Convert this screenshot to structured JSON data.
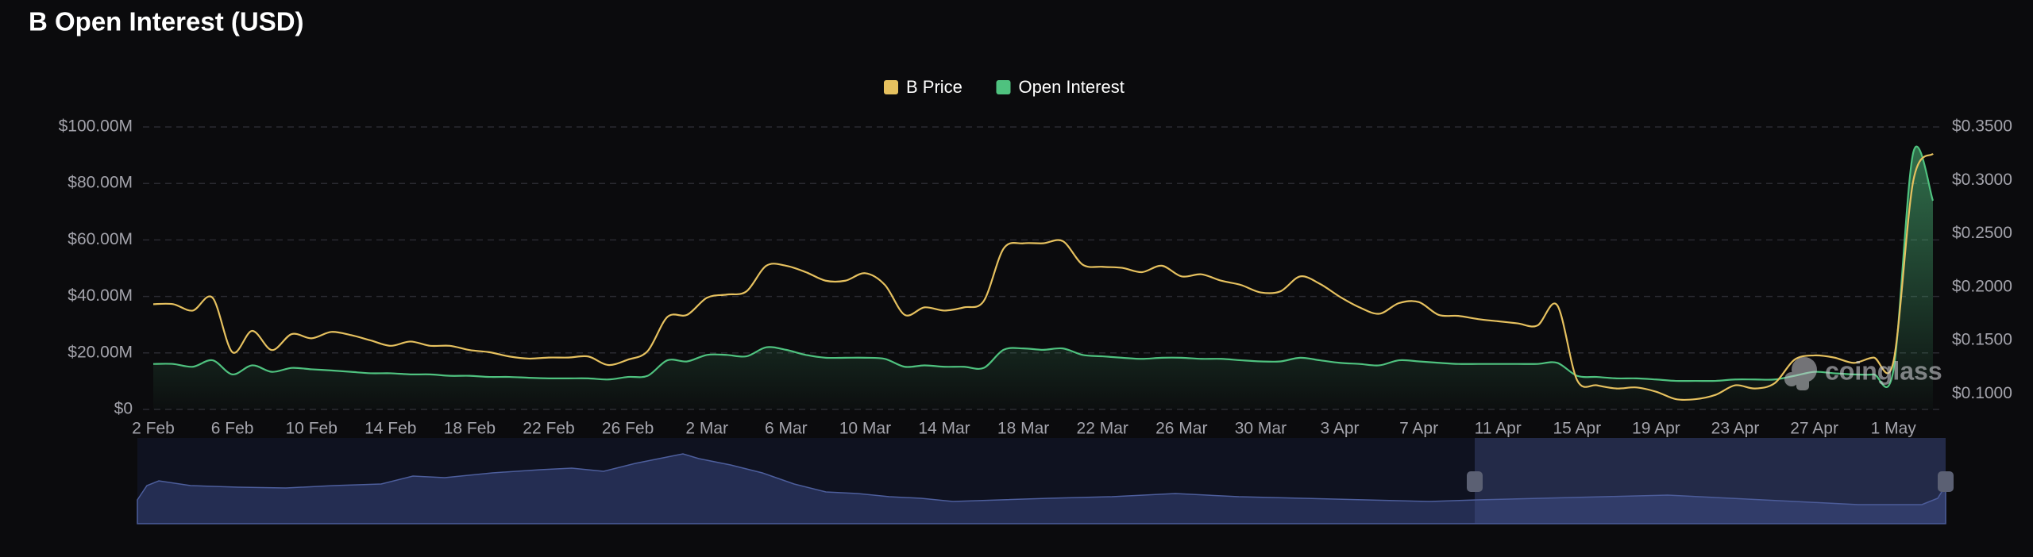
{
  "chart_data": {
    "type": "line",
    "title": "B Open Interest (USD)",
    "watermark": "coinglass",
    "legend_position": "top",
    "grid": true,
    "categories": [
      "2 Feb",
      null,
      null,
      null,
      "6 Feb",
      null,
      null,
      null,
      "10 Feb",
      null,
      null,
      null,
      "14 Feb",
      null,
      null,
      null,
      "18 Feb",
      null,
      null,
      null,
      "22 Feb",
      null,
      null,
      null,
      "26 Feb",
      null,
      null,
      null,
      "2 Mar",
      null,
      null,
      null,
      "6 Mar",
      null,
      null,
      null,
      "10 Mar",
      null,
      null,
      null,
      "14 Mar",
      null,
      null,
      null,
      "18 Mar",
      null,
      null,
      null,
      "22 Mar",
      null,
      null,
      null,
      "26 Mar",
      null,
      null,
      null,
      "30 Mar",
      null,
      null,
      null,
      "3 Apr",
      null,
      null,
      null,
      "7 Apr",
      null,
      null,
      null,
      "11 Apr",
      null,
      null,
      null,
      "15 Apr",
      null,
      null,
      null,
      "19 Apr",
      null,
      null,
      null,
      "23 Apr",
      null,
      null,
      null,
      "27 Apr",
      null,
      null,
      null,
      "1 May",
      null,
      null
    ],
    "series": [
      {
        "name": "B Price",
        "color": "#e6c15f",
        "axis": "y2",
        "values": [
          0.184,
          0.184,
          0.178,
          0.19,
          0.139,
          0.159,
          0.141,
          0.156,
          0.152,
          0.158,
          0.155,
          0.15,
          0.145,
          0.149,
          0.145,
          0.145,
          0.141,
          0.139,
          0.135,
          0.133,
          0.134,
          0.134,
          0.135,
          0.127,
          0.132,
          0.14,
          0.172,
          0.174,
          0.19,
          0.193,
          0.196,
          0.22,
          0.22,
          0.214,
          0.206,
          0.206,
          0.213,
          0.202,
          0.174,
          0.181,
          0.178,
          0.181,
          0.187,
          0.236,
          0.241,
          0.241,
          0.243,
          0.221,
          0.219,
          0.218,
          0.214,
          0.22,
          0.21,
          0.212,
          0.206,
          0.202,
          0.195,
          0.196,
          0.21,
          0.203,
          0.191,
          0.181,
          0.175,
          0.185,
          0.186,
          0.174,
          0.173,
          0.17,
          0.168,
          0.166,
          0.164,
          0.183,
          0.113,
          0.108,
          0.105,
          0.106,
          0.102,
          0.095,
          0.095,
          0.099,
          0.108,
          0.105,
          0.11,
          0.132,
          0.136,
          0.134,
          0.129,
          0.134,
          0.13,
          0.299,
          0.325
        ]
      },
      {
        "name": "Open Interest",
        "color": "#4fc27f",
        "axis": "y",
        "area": true,
        "values": [
          16100000,
          16100000,
          15100000,
          17400000,
          12400000,
          15600000,
          13300000,
          14700000,
          14200000,
          13800000,
          13300000,
          12800000,
          12800000,
          12400000,
          12400000,
          11900000,
          11900000,
          11500000,
          11500000,
          11200000,
          11000000,
          11000000,
          11000000,
          10600000,
          11500000,
          11900000,
          17400000,
          17000000,
          19300000,
          19300000,
          18800000,
          22000000,
          21100000,
          19300000,
          18300000,
          18300000,
          18300000,
          17900000,
          15100000,
          15600000,
          15100000,
          15100000,
          14700000,
          21100000,
          21600000,
          21100000,
          21600000,
          19300000,
          18800000,
          18300000,
          17900000,
          18300000,
          18300000,
          17900000,
          17900000,
          17400000,
          17000000,
          17000000,
          18300000,
          17400000,
          16500000,
          16100000,
          15600000,
          17400000,
          17000000,
          16500000,
          16100000,
          16100000,
          16100000,
          16100000,
          16100000,
          16500000,
          11900000,
          11500000,
          11000000,
          11000000,
          10600000,
          10100000,
          10100000,
          10100000,
          10600000,
          10600000,
          10600000,
          11900000,
          13300000,
          12800000,
          12400000,
          12400000,
          13800000,
          90800000,
          73900000
        ]
      }
    ],
    "ylim": [
      0,
      100000000
    ],
    "yticks": [
      {
        "value": 0,
        "label": "$0"
      },
      {
        "value": 20000000,
        "label": "$20.00M"
      },
      {
        "value": 40000000,
        "label": "$40.00M"
      },
      {
        "value": 60000000,
        "label": "$60.00M"
      },
      {
        "value": 80000000,
        "label": "$80.00M"
      },
      {
        "value": 100000000,
        "label": "$100.00M"
      }
    ],
    "y2lim": [
      0.0854,
      0.35
    ],
    "y2ticks": [
      {
        "value": 0.1,
        "label": "$0.1000"
      },
      {
        "value": 0.15,
        "label": "$0.1500"
      },
      {
        "value": 0.2,
        "label": "$0.2000"
      },
      {
        "value": 0.25,
        "label": "$0.2500"
      },
      {
        "value": 0.3,
        "label": "$0.3000"
      },
      {
        "value": 0.35,
        "label": "$0.3500"
      }
    ]
  }
}
